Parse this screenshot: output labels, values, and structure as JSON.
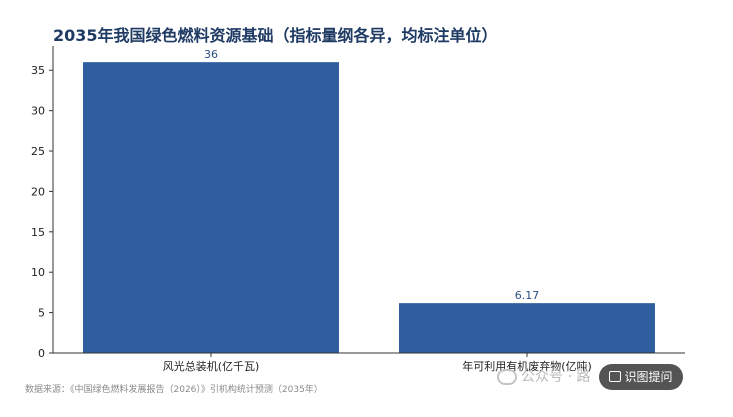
{
  "watermark": {
    "text": "公众号 · 路"
  },
  "ocr_button": {
    "label": "识图提问",
    "icon": "image-scan-icon"
  },
  "source_note": "数据来源：《中国绿色燃料发展报告（2026）》引机构统计预测（2035年）",
  "chart_data": {
    "type": "bar",
    "title": "2035年我国绿色燃料资源基础（指标量纲各异，均标注单位）",
    "categories": [
      "风光总装机(亿千瓦)",
      "年可利用有机废弃物(亿吨)"
    ],
    "values": [
      36,
      6.17
    ],
    "data_labels": [
      "36",
      "6.17"
    ],
    "xlabel": "",
    "ylabel": "",
    "ylim": [
      0,
      38
    ],
    "yticks": [
      0,
      5,
      10,
      15,
      20,
      25,
      30,
      35
    ],
    "grid": false,
    "bar_color": "#2e5e9e"
  }
}
